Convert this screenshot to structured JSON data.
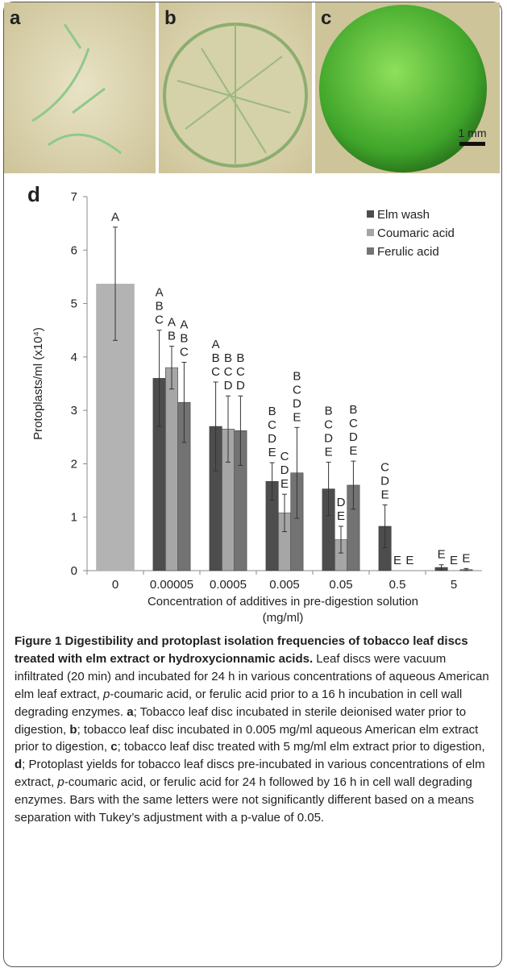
{
  "figure": {
    "panel_labels": [
      "a",
      "b",
      "c",
      "d"
    ],
    "scale_bar": "1 mm"
  },
  "chart_data": {
    "type": "bar",
    "ylabel": "Protoplasts/ml (x10⁴)",
    "xlabel": [
      "Concentration of additives in pre-digestion solution",
      "(mg/ml)"
    ],
    "categories": [
      "0",
      "0.00005",
      "0.0005",
      "0.005",
      "0.05",
      "0.5",
      "5"
    ],
    "control": {
      "value": 5.37,
      "error": 1.06,
      "color": "#b3b3b3",
      "letters": [
        "A"
      ]
    },
    "series": [
      {
        "name": "Elm wash",
        "color": "#4d4d4d",
        "values": [
          null,
          3.6,
          2.7,
          1.67,
          1.53,
          0.83,
          0.06
        ],
        "errors": [
          null,
          0.9,
          0.83,
          0.35,
          0.5,
          0.4,
          0.05
        ],
        "letters": [
          null,
          [
            "A",
            "B",
            "C"
          ],
          [
            "A",
            "B",
            "C"
          ],
          [
            "B",
            "C",
            "D",
            "E"
          ],
          [
            "B",
            "C",
            "D",
            "E"
          ],
          [
            "C",
            "D",
            "E"
          ],
          [
            "E"
          ]
        ]
      },
      {
        "name": "Coumaric acid",
        "color": "#a6a6a6",
        "values": [
          null,
          3.8,
          2.65,
          1.08,
          0.58,
          0,
          0
        ],
        "errors": [
          null,
          0.4,
          0.62,
          0.35,
          0.25,
          0,
          0
        ],
        "letters": [
          null,
          [
            "A",
            "B"
          ],
          [
            "B",
            "C",
            "D"
          ],
          [
            "C",
            "D",
            "E"
          ],
          [
            "D",
            "E"
          ],
          [
            "E"
          ],
          [
            "E"
          ]
        ]
      },
      {
        "name": "Ferulic acid",
        "color": "#737373",
        "values": [
          null,
          3.15,
          2.62,
          1.83,
          1.6,
          0,
          0.02
        ],
        "errors": [
          null,
          0.75,
          0.65,
          0.85,
          0.45,
          0,
          0.02
        ],
        "letters": [
          null,
          [
            "A",
            "B",
            "C"
          ],
          [
            "B",
            "C",
            "D"
          ],
          [
            "B",
            "C",
            "D",
            "E"
          ],
          [
            "B",
            "C",
            "D",
            "E"
          ],
          [
            "E"
          ],
          [
            "E"
          ]
        ]
      }
    ],
    "ylim": [
      0,
      7
    ],
    "yticks": [
      0,
      1,
      2,
      3,
      4,
      5,
      6,
      7
    ],
    "legend": "upper-right"
  },
  "caption": {
    "title": "Figure 1 Digestibility and protoplast isolation frequencies of tobacco leaf discs treated with elm extract or hydroxycionnamic acids.",
    "body": [
      " Leaf discs were vacuum infiltrated (20 min) and incubated for 24 h in various concentrations of aqueous American elm leaf extract, ",
      "p",
      "-coumaric acid, or ferulic acid prior to a 16 h incubation in cell wall degrading enzymes. ",
      "a",
      "; Tobacco leaf disc incubated in sterile deionised water prior to digestion, ",
      "b",
      "; tobacco leaf disc incubated in 0.005 mg/ml aqueous American elm extract prior to digestion, ",
      "c",
      "; tobacco leaf disc treated with 5 mg/ml elm extract prior to digestion, ",
      "d",
      "; Protoplast yields for tobacco leaf discs pre-incubated in various concentrations of elm extract, ",
      "p",
      "-coumaric acid, or ferulic acid for 24 h followed by 16 h in cell wall degrading enzymes. Bars with the same letters were not significantly different based on a means separation with Tukey’s adjustment with a p-value of 0.05."
    ]
  }
}
